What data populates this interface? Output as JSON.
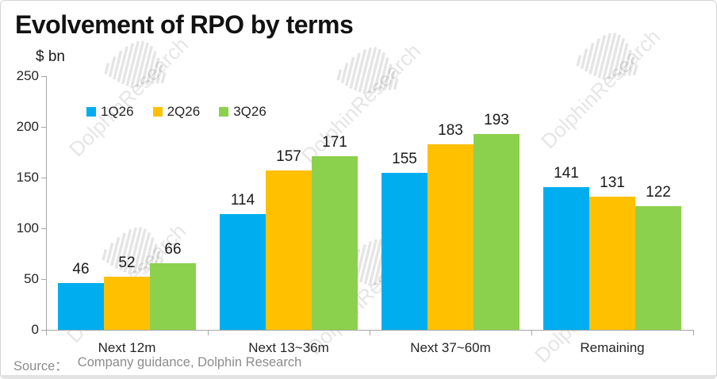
{
  "title": "Evolvement of RPO by terms",
  "unit_label": "$ bn",
  "source": {
    "label": "Source：",
    "text": "Company guidance, Dolphin Research"
  },
  "watermark": {
    "text": "DolphinResearch",
    "logo": "dolphin-stripes-logo",
    "color": "#000000",
    "opacity": 0.1,
    "count": 6
  },
  "chart_data": {
    "type": "bar",
    "title": "Evolvement of RPO by terms",
    "ylabel": "$ bn",
    "xlabel": "",
    "categories": [
      "Next 12m",
      "Next 13~36m",
      "Next 37~60m",
      "Remaining"
    ],
    "series": [
      {
        "name": "1Q26",
        "color": "#00AEEF",
        "values": [
          46,
          114,
          155,
          141
        ]
      },
      {
        "name": "2Q26",
        "color": "#FFC000",
        "values": [
          52,
          157,
          183,
          131
        ]
      },
      {
        "name": "3Q26",
        "color": "#8CD14E",
        "values": [
          66,
          171,
          193,
          122
        ]
      }
    ],
    "ylim": [
      0,
      250
    ],
    "yticks": [
      0,
      50,
      100,
      150,
      200,
      250
    ],
    "grid": false,
    "data_labels": true,
    "legend_position": "top-left-inside"
  }
}
